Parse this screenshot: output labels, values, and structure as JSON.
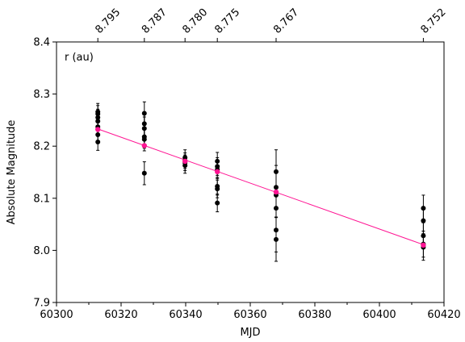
{
  "chart_data": {
    "type": "scatter",
    "title": "",
    "xlabel": "MJD",
    "ylabel": "Absolute Magnitude",
    "xlim": [
      60300,
      60420
    ],
    "ylim": [
      7.9,
      8.4
    ],
    "x_ticks": [
      60300,
      60320,
      60340,
      60360,
      60380,
      60400,
      60420
    ],
    "x_minor_ticks": [
      60310,
      60330,
      60350,
      60370,
      60390,
      60410
    ],
    "y_ticks": [
      "7.9",
      "8.0",
      "8.1",
      "8.2",
      "8.3",
      "8.4"
    ],
    "top_axis": {
      "label": "r (au)",
      "tick_positions_mjd": [
        60312.8,
        60327.2,
        60339.8,
        60349.8,
        60368.0,
        60413.6
      ],
      "tick_labels": [
        "8.795",
        "8.787",
        "8.780",
        "8.775",
        "8.767",
        "8.752"
      ]
    },
    "grid": false,
    "legend": "none",
    "colors": {
      "observations": "#000000",
      "fit": "#ff1493",
      "nightly_mean": "#ff1493"
    },
    "observations": [
      {
        "x": 60312.8,
        "y": 8.266,
        "err": 0.016
      },
      {
        "x": 60312.8,
        "y": 8.262,
        "err": 0.016
      },
      {
        "x": 60312.8,
        "y": 8.255,
        "err": 0.016
      },
      {
        "x": 60312.8,
        "y": 8.248,
        "err": 0.016
      },
      {
        "x": 60312.8,
        "y": 8.237,
        "err": 0.016
      },
      {
        "x": 60312.8,
        "y": 8.222,
        "err": 0.016
      },
      {
        "x": 60312.8,
        "y": 8.208,
        "err": 0.016
      },
      {
        "x": 60327.2,
        "y": 8.263,
        "err": 0.022
      },
      {
        "x": 60327.2,
        "y": 8.243,
        "err": 0.022
      },
      {
        "x": 60327.2,
        "y": 8.234,
        "err": 0.022
      },
      {
        "x": 60327.2,
        "y": 8.218,
        "err": 0.022
      },
      {
        "x": 60327.2,
        "y": 8.213,
        "err": 0.022
      },
      {
        "x": 60327.2,
        "y": 8.148,
        "err": 0.022
      },
      {
        "x": 60339.8,
        "y": 8.178,
        "err": 0.015
      },
      {
        "x": 60339.8,
        "y": 8.172,
        "err": 0.015
      },
      {
        "x": 60339.8,
        "y": 8.168,
        "err": 0.015
      },
      {
        "x": 60339.8,
        "y": 8.163,
        "err": 0.015
      },
      {
        "x": 60349.8,
        "y": 8.171,
        "err": 0.017
      },
      {
        "x": 60349.8,
        "y": 8.161,
        "err": 0.017
      },
      {
        "x": 60349.8,
        "y": 8.155,
        "err": 0.017
      },
      {
        "x": 60349.8,
        "y": 8.123,
        "err": 0.017
      },
      {
        "x": 60349.8,
        "y": 8.118,
        "err": 0.017
      },
      {
        "x": 60349.8,
        "y": 8.091,
        "err": 0.017
      },
      {
        "x": 60368.0,
        "y": 8.151,
        "err": 0.042
      },
      {
        "x": 60368.0,
        "y": 8.121,
        "err": 0.042
      },
      {
        "x": 60368.0,
        "y": 8.106,
        "err": 0.042
      },
      {
        "x": 60368.0,
        "y": 8.081,
        "err": 0.042
      },
      {
        "x": 60368.0,
        "y": 8.039,
        "err": 0.042
      },
      {
        "x": 60368.0,
        "y": 8.021,
        "err": 0.042
      },
      {
        "x": 60413.6,
        "y": 8.081,
        "err": 0.025
      },
      {
        "x": 60413.6,
        "y": 8.057,
        "err": 0.025
      },
      {
        "x": 60413.6,
        "y": 8.028,
        "err": 0.025
      },
      {
        "x": 60413.6,
        "y": 8.012,
        "err": 0.025
      },
      {
        "x": 60413.6,
        "y": 8.006,
        "err": 0.025
      }
    ],
    "nightly_means": [
      {
        "x": 60312.8,
        "y": 8.232
      },
      {
        "x": 60327.2,
        "y": 8.201
      },
      {
        "x": 60339.8,
        "y": 8.171
      },
      {
        "x": 60349.8,
        "y": 8.151
      },
      {
        "x": 60368.0,
        "y": 8.112
      },
      {
        "x": 60413.6,
        "y": 8.01
      }
    ],
    "fit_line": {
      "x": [
        60312.8,
        60413.6
      ],
      "y": [
        8.233,
        8.011
      ]
    }
  }
}
